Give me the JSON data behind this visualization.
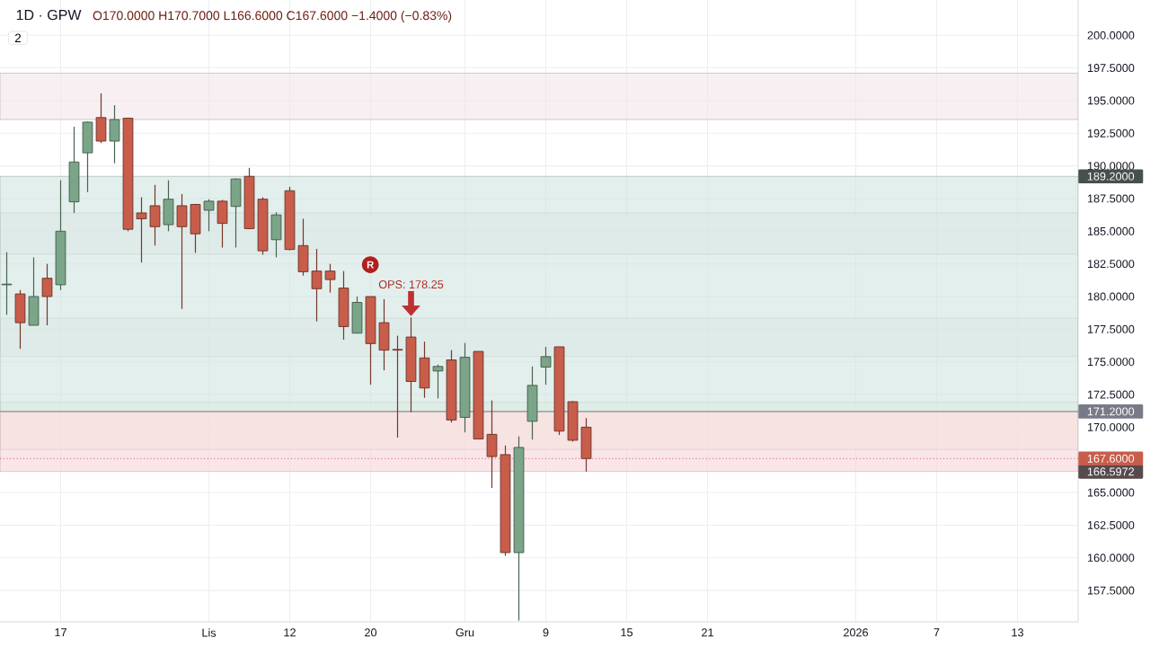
{
  "chart_data": {
    "type": "candlestick",
    "title": "1D · GPW",
    "subtitle": "O170.0000 H170.7000 L166.6000 C167.6000 −1.4000 (−0.83%)",
    "categories": [
      null,
      null,
      null,
      null,
      "17",
      null,
      null,
      null,
      null,
      null,
      null,
      null,
      null,
      null,
      null,
      "Lis",
      null,
      null,
      null,
      null,
      null,
      "12",
      null,
      null,
      null,
      null,
      null,
      "20",
      null,
      null,
      null,
      null,
      null,
      null,
      "Gru",
      null,
      null,
      null,
      null,
      null,
      "9",
      null,
      null,
      null,
      null,
      null,
      "15",
      null,
      null,
      null,
      null,
      null,
      "21",
      null,
      null,
      null,
      null,
      null,
      null,
      null,
      null,
      null,
      null,
      "2026",
      null,
      null,
      null,
      null,
      null,
      "7",
      null,
      null,
      null,
      null,
      null,
      "13",
      null,
      null,
      null,
      null
    ],
    "ohlc": [
      [
        180.9,
        183.4,
        178.6,
        180.95
      ],
      [
        180.2,
        180.5,
        176.0,
        178.0
      ],
      [
        177.8,
        183.0,
        177.8,
        180.0
      ],
      [
        181.4,
        182.5,
        177.8,
        180.0
      ],
      [
        180.9,
        188.9,
        180.5,
        185.0
      ],
      [
        187.25,
        193.0,
        186.4,
        190.3
      ],
      [
        191.0,
        193.4,
        188.0,
        193.35
      ],
      [
        193.7,
        195.55,
        191.75,
        191.9
      ],
      [
        191.9,
        194.65,
        190.2,
        193.55
      ],
      [
        193.65,
        193.7,
        185.0,
        185.15
      ],
      [
        186.4,
        187.6,
        182.6,
        185.95
      ],
      [
        186.95,
        188.55,
        183.9,
        185.35
      ],
      [
        185.5,
        188.9,
        185.0,
        187.45
      ],
      [
        186.95,
        187.85,
        179.05,
        185.35
      ],
      [
        187.05,
        187.1,
        183.35,
        184.8
      ],
      [
        186.6,
        187.45,
        185.0,
        187.3
      ],
      [
        187.3,
        187.4,
        183.75,
        185.6
      ],
      [
        186.9,
        189.05,
        183.75,
        189.0
      ],
      [
        189.2,
        189.85,
        185.15,
        185.2
      ],
      [
        187.45,
        187.6,
        183.2,
        183.5
      ],
      [
        184.35,
        186.45,
        183.0,
        186.25
      ],
      [
        188.1,
        188.4,
        183.55,
        183.6
      ],
      [
        183.9,
        185.95,
        181.6,
        181.9
      ],
      [
        181.95,
        183.65,
        178.1,
        180.6
      ],
      [
        181.95,
        182.5,
        180.3,
        181.3
      ],
      [
        180.65,
        181.95,
        176.7,
        177.7
      ],
      [
        177.2,
        180.0,
        177.2,
        179.55
      ],
      [
        180.0,
        180.0,
        173.25,
        176.4
      ],
      [
        178.0,
        179.8,
        174.35,
        175.9
      ],
      [
        175.95,
        177.0,
        169.2,
        175.9
      ],
      [
        176.9,
        178.4,
        171.15,
        173.5
      ],
      [
        175.3,
        176.55,
        172.25,
        173.0
      ],
      [
        174.3,
        174.8,
        172.2,
        174.65
      ],
      [
        175.15,
        175.9,
        170.35,
        170.55
      ],
      [
        170.75,
        176.45,
        169.6,
        175.35
      ],
      [
        175.8,
        175.8,
        169.1,
        169.1
      ],
      [
        169.45,
        172.05,
        165.35,
        167.75
      ],
      [
        167.9,
        168.6,
        160.15,
        160.4
      ],
      [
        160.4,
        169.3,
        155.2,
        168.45
      ],
      [
        170.45,
        174.65,
        169.05,
        173.2
      ],
      [
        174.6,
        176.15,
        173.25,
        175.4
      ],
      [
        176.15,
        176.15,
        169.4,
        169.7
      ],
      [
        171.95,
        172.0,
        168.9,
        169.0
      ],
      [
        170.0,
        170.7,
        166.6,
        167.6
      ],
      null,
      null,
      null,
      null,
      null,
      null,
      null,
      null,
      null,
      null,
      null,
      null,
      null,
      null,
      null,
      null,
      null,
      null,
      null,
      null,
      null,
      null,
      null,
      null,
      null,
      null,
      null,
      null,
      null,
      null,
      null,
      null,
      null,
      null,
      null,
      null
    ],
    "colors": [
      "#7aa588",
      "#c75d4a",
      "#7aa588",
      "#c75d4a",
      "#7aa588",
      "#7aa588",
      "#7aa588",
      "#c75d4a",
      "#7aa588",
      "#c75d4a",
      "#c75d4a",
      "#c75d4a",
      "#7aa588",
      "#c75d4a",
      "#c75d4a",
      "#7aa588",
      "#c75d4a",
      "#7aa588",
      "#c75d4a",
      "#c75d4a",
      "#7aa588",
      "#c75d4a",
      "#c75d4a",
      "#c75d4a",
      "#c75d4a",
      "#c75d4a",
      "#7aa588",
      "#c75d4a",
      "#c75d4a",
      "#c75d4a",
      "#c75d4a",
      "#c75d4a",
      "#7aa588",
      "#c75d4a",
      "#7aa588",
      "#c75d4a",
      "#c75d4a",
      "#c75d4a",
      "#7aa588",
      "#7aa588",
      "#7aa588",
      "#c75d4a",
      "#c75d4a",
      "#c75d4a",
      null,
      null,
      null,
      null,
      null,
      null,
      null,
      null,
      null,
      null,
      null,
      null,
      null,
      null,
      null,
      null,
      null,
      null,
      null,
      null,
      null,
      null,
      null,
      null,
      null,
      null,
      null,
      null,
      null,
      null,
      null,
      null,
      null,
      null,
      null,
      null
    ],
    "ylim": [
      155.1,
      202.7
    ],
    "yticks": [
      {
        "value": 157.5,
        "label": "157.5000"
      },
      {
        "value": 160,
        "label": "160.0000"
      },
      {
        "value": 162.5,
        "label": "162.5000"
      },
      {
        "value": 165,
        "label": "165.0000"
      },
      {
        "value": 170,
        "label": "170.0000"
      },
      {
        "value": 172.5,
        "label": "172.5000"
      },
      {
        "value": 175,
        "label": "175.0000"
      },
      {
        "value": 177.5,
        "label": "177.5000"
      },
      {
        "value": 180,
        "label": "180.0000"
      },
      {
        "value": 182.5,
        "label": "182.5000"
      },
      {
        "value": 185,
        "label": "185.0000"
      },
      {
        "value": 187.5,
        "label": "187.5000"
      },
      {
        "value": 190,
        "label": "190.0000"
      },
      {
        "value": 192.5,
        "label": "192.5000"
      },
      {
        "value": 195,
        "label": "195.0000"
      },
      {
        "value": 197.5,
        "label": "197.5000"
      },
      {
        "value": 200,
        "label": "200.0000"
      }
    ],
    "grid": true,
    "bands": [
      {
        "axis": "y",
        "from": 193.55,
        "to": 197.1,
        "color": "#f2e4e7"
      },
      {
        "axis": "y",
        "from": 183.25,
        "to": 186.4,
        "color": "#f4eef0"
      },
      {
        "axis": "y",
        "from": 175.4,
        "to": 178.35,
        "color": "#f4eef0"
      },
      {
        "axis": "y",
        "from": 168.3,
        "to": 171.9,
        "color": "#eef9e8"
      },
      {
        "axis": "y",
        "from": 171.2,
        "to": 189.2,
        "color": "#cfe5e0",
        "label": "189.2000"
      },
      {
        "axis": "y",
        "from": 171.2,
        "to": 166.5972,
        "color": "#f7d3d8",
        "label": "166.5972"
      }
    ],
    "ref_lines": [
      {
        "axis": "y",
        "value": 171.2,
        "label": "171.2000",
        "color": "#787b86",
        "line_style": "solid"
      },
      {
        "axis": "y",
        "value": 167.6,
        "label": "167.6000",
        "color": "#c75d4a",
        "line_style": "dotted"
      }
    ],
    "annotations": [
      {
        "text": "OPS: 178.25",
        "y": 178.4
      },
      "R",
      "2"
    ]
  }
}
